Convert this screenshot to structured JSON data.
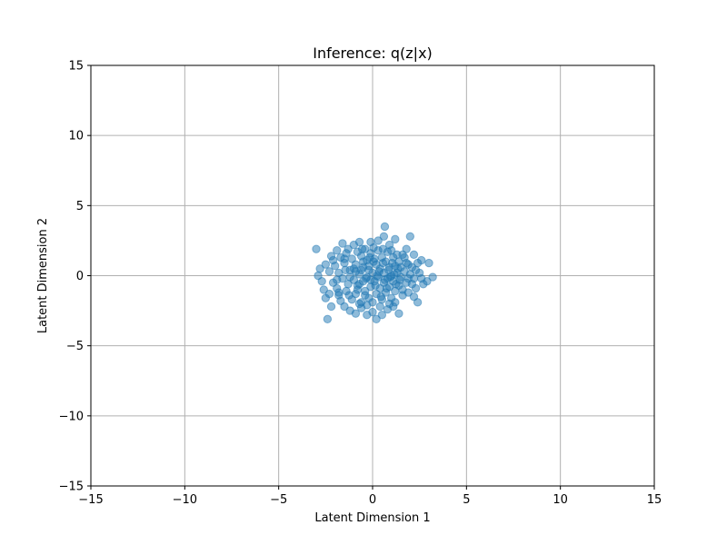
{
  "chart_data": {
    "type": "scatter",
    "title": "Inference: q(z|x)",
    "xlabel": "Latent Dimension 1",
    "ylabel": "Latent Dimension 2",
    "xlim": [
      -15,
      15
    ],
    "ylim": [
      -15,
      15
    ],
    "xticks": [
      -15,
      -10,
      -5,
      0,
      5,
      10,
      15
    ],
    "yticks": [
      -15,
      -10,
      -5,
      0,
      5,
      10,
      15
    ],
    "grid": true,
    "colors": {
      "points": "#1f77b4",
      "grid": "#b0b0b0",
      "axis": "#000000"
    },
    "point_alpha": 0.5,
    "series": [
      {
        "points": [
          [
            -3.0,
            1.9
          ],
          [
            -2.8,
            0.5
          ],
          [
            -2.9,
            0.0
          ],
          [
            -2.7,
            -0.4
          ],
          [
            -2.6,
            -1.0
          ],
          [
            -2.5,
            -1.6
          ],
          [
            -2.4,
            -3.1
          ],
          [
            -2.2,
            -2.2
          ],
          [
            -2.1,
            1.1
          ],
          [
            -1.9,
            1.8
          ],
          [
            -1.8,
            -1.4
          ],
          [
            -1.6,
            2.3
          ],
          [
            -1.5,
            -2.2
          ],
          [
            -1.3,
            1.9
          ],
          [
            -1.2,
            -2.5
          ],
          [
            -1.0,
            2.2
          ],
          [
            -0.9,
            -2.7
          ],
          [
            -0.7,
            2.4
          ],
          [
            -0.6,
            -2.3
          ],
          [
            -0.4,
            1.9
          ],
          [
            -0.3,
            -2.8
          ],
          [
            -0.1,
            2.4
          ],
          [
            0.0,
            -2.6
          ],
          [
            0.2,
            -3.1
          ],
          [
            0.3,
            2.5
          ],
          [
            0.5,
            -2.8
          ],
          [
            0.6,
            2.8
          ],
          [
            0.65,
            3.5
          ],
          [
            0.8,
            -2.4
          ],
          [
            0.9,
            2.2
          ],
          [
            1.1,
            -2.2
          ],
          [
            1.2,
            2.6
          ],
          [
            1.3,
            1.5
          ],
          [
            1.4,
            -2.7
          ],
          [
            1.6,
            -1.4
          ],
          [
            1.7,
            1.3
          ],
          [
            1.9,
            0.8
          ],
          [
            2.0,
            2.8
          ],
          [
            2.1,
            -0.6
          ],
          [
            2.2,
            1.5
          ],
          [
            2.3,
            -0.9
          ],
          [
            2.4,
            -1.9
          ],
          [
            2.5,
            0.2
          ],
          [
            2.6,
            1.1
          ],
          [
            2.7,
            -0.6
          ],
          [
            2.9,
            -0.4
          ],
          [
            3.0,
            0.9
          ],
          [
            3.2,
            -0.1
          ],
          [
            -2.3,
            0.3
          ],
          [
            -2.1,
            -0.5
          ],
          [
            -2.0,
            0.7
          ],
          [
            -1.9,
            -0.9
          ],
          [
            -1.8,
            0.2
          ],
          [
            -1.7,
            1.3
          ],
          [
            -1.7,
            -1.8
          ],
          [
            -1.6,
            -0.2
          ],
          [
            -1.5,
            0.9
          ],
          [
            -1.4,
            -1.1
          ],
          [
            -1.4,
            1.6
          ],
          [
            -1.3,
            -0.6
          ],
          [
            -1.2,
            0.4
          ],
          [
            -1.1,
            -1.7
          ],
          [
            -1.1,
            1.2
          ],
          [
            -1.0,
            -0.3
          ],
          [
            -0.9,
            0.8
          ],
          [
            -0.9,
            -1.3
          ],
          [
            -0.8,
            1.7
          ],
          [
            -0.8,
            -0.7
          ],
          [
            -0.7,
            0.1
          ],
          [
            -0.6,
            -1.9
          ],
          [
            -0.6,
            1.4
          ],
          [
            -0.5,
            -0.4
          ],
          [
            -0.5,
            0.6
          ],
          [
            -0.4,
            -1.1
          ],
          [
            -0.3,
            1.1
          ],
          [
            -0.3,
            -0.1
          ],
          [
            -0.2,
            -1.6
          ],
          [
            -0.2,
            0.4
          ],
          [
            -0.1,
            1.6
          ],
          [
            -0.1,
            -0.8
          ],
          [
            0.0,
            0.2
          ],
          [
            0.0,
            -1.9
          ],
          [
            0.1,
            1.2
          ],
          [
            0.1,
            -0.4
          ],
          [
            0.2,
            0.8
          ],
          [
            0.2,
            -1.3
          ],
          [
            0.3,
            1.8
          ],
          [
            0.3,
            -0.1
          ],
          [
            0.4,
            -0.9
          ],
          [
            0.4,
            0.5
          ],
          [
            0.5,
            -1.7
          ],
          [
            0.5,
            1.3
          ],
          [
            0.6,
            -0.5
          ],
          [
            0.6,
            0.2
          ],
          [
            0.7,
            -1.2
          ],
          [
            0.7,
            1.0
          ],
          [
            0.8,
            -0.2
          ],
          [
            0.8,
            1.7
          ],
          [
            0.9,
            -0.8
          ],
          [
            0.9,
            0.6
          ],
          [
            1.0,
            -1.6
          ],
          [
            1.0,
            0.0
          ],
          [
            1.1,
            1.3
          ],
          [
            1.1,
            -0.4
          ],
          [
            1.2,
            0.7
          ],
          [
            1.2,
            -1.1
          ],
          [
            1.3,
            0.2
          ],
          [
            1.4,
            -0.7
          ],
          [
            1.4,
            1.0
          ],
          [
            1.5,
            -0.1
          ],
          [
            1.5,
            0.6
          ],
          [
            1.6,
            -1.0
          ],
          [
            1.7,
            0.3
          ],
          [
            1.8,
            -0.5
          ],
          [
            1.8,
            0.9
          ],
          [
            1.9,
            -1.2
          ],
          [
            2.0,
            0.1
          ],
          [
            2.1,
            0.6
          ],
          [
            2.2,
            -0.2
          ],
          [
            2.3,
            0.4
          ],
          [
            -1.2,
            -0.1
          ],
          [
            -0.9,
            0.3
          ],
          [
            -0.7,
            -0.6
          ],
          [
            -0.5,
            1.0
          ],
          [
            -0.4,
            -1.4
          ],
          [
            -0.2,
            0.7
          ],
          [
            -0.1,
            -0.3
          ],
          [
            0.05,
            1.0
          ],
          [
            0.15,
            -0.7
          ],
          [
            0.35,
            0.3
          ],
          [
            0.45,
            -1.5
          ],
          [
            0.55,
            0.9
          ],
          [
            0.75,
            -0.9
          ],
          [
            0.85,
            0.4
          ],
          [
            0.95,
            -0.1
          ],
          [
            1.05,
            0.9
          ],
          [
            1.25,
            -0.6
          ],
          [
            1.35,
            0.5
          ],
          [
            -1.0,
            0.5
          ],
          [
            -0.8,
            -1.0
          ],
          [
            -0.6,
            0.4
          ],
          [
            -0.35,
            -0.2
          ],
          [
            -0.15,
            1.3
          ],
          [
            0.25,
            0.0
          ],
          [
            0.65,
            -0.3
          ],
          [
            1.15,
            0.1
          ],
          [
            1.45,
            -0.3
          ],
          [
            -1.45,
            0.4
          ],
          [
            -1.25,
            -1.4
          ],
          [
            -0.55,
            1.9
          ],
          [
            0.05,
            2.0
          ],
          [
            0.55,
            1.9
          ],
          [
            1.0,
            1.8
          ],
          [
            -0.3,
            -2.1
          ],
          [
            0.4,
            -2.2
          ],
          [
            1.2,
            -1.9
          ],
          [
            -1.8,
            -1.2
          ],
          [
            -2.2,
            1.4
          ],
          [
            2.2,
            -1.5
          ],
          [
            1.8,
            1.9
          ],
          [
            -2.5,
            0.8
          ],
          [
            -2.3,
            -1.3
          ],
          [
            2.6,
            -0.2
          ],
          [
            2.4,
            0.9
          ],
          [
            -0.7,
            -2.0
          ],
          [
            0.9,
            -2.0
          ],
          [
            -1.5,
            1.2
          ],
          [
            1.6,
            1.5
          ],
          [
            -1.9,
            -0.3
          ],
          [
            1.9,
            -0.2
          ]
        ]
      }
    ]
  }
}
